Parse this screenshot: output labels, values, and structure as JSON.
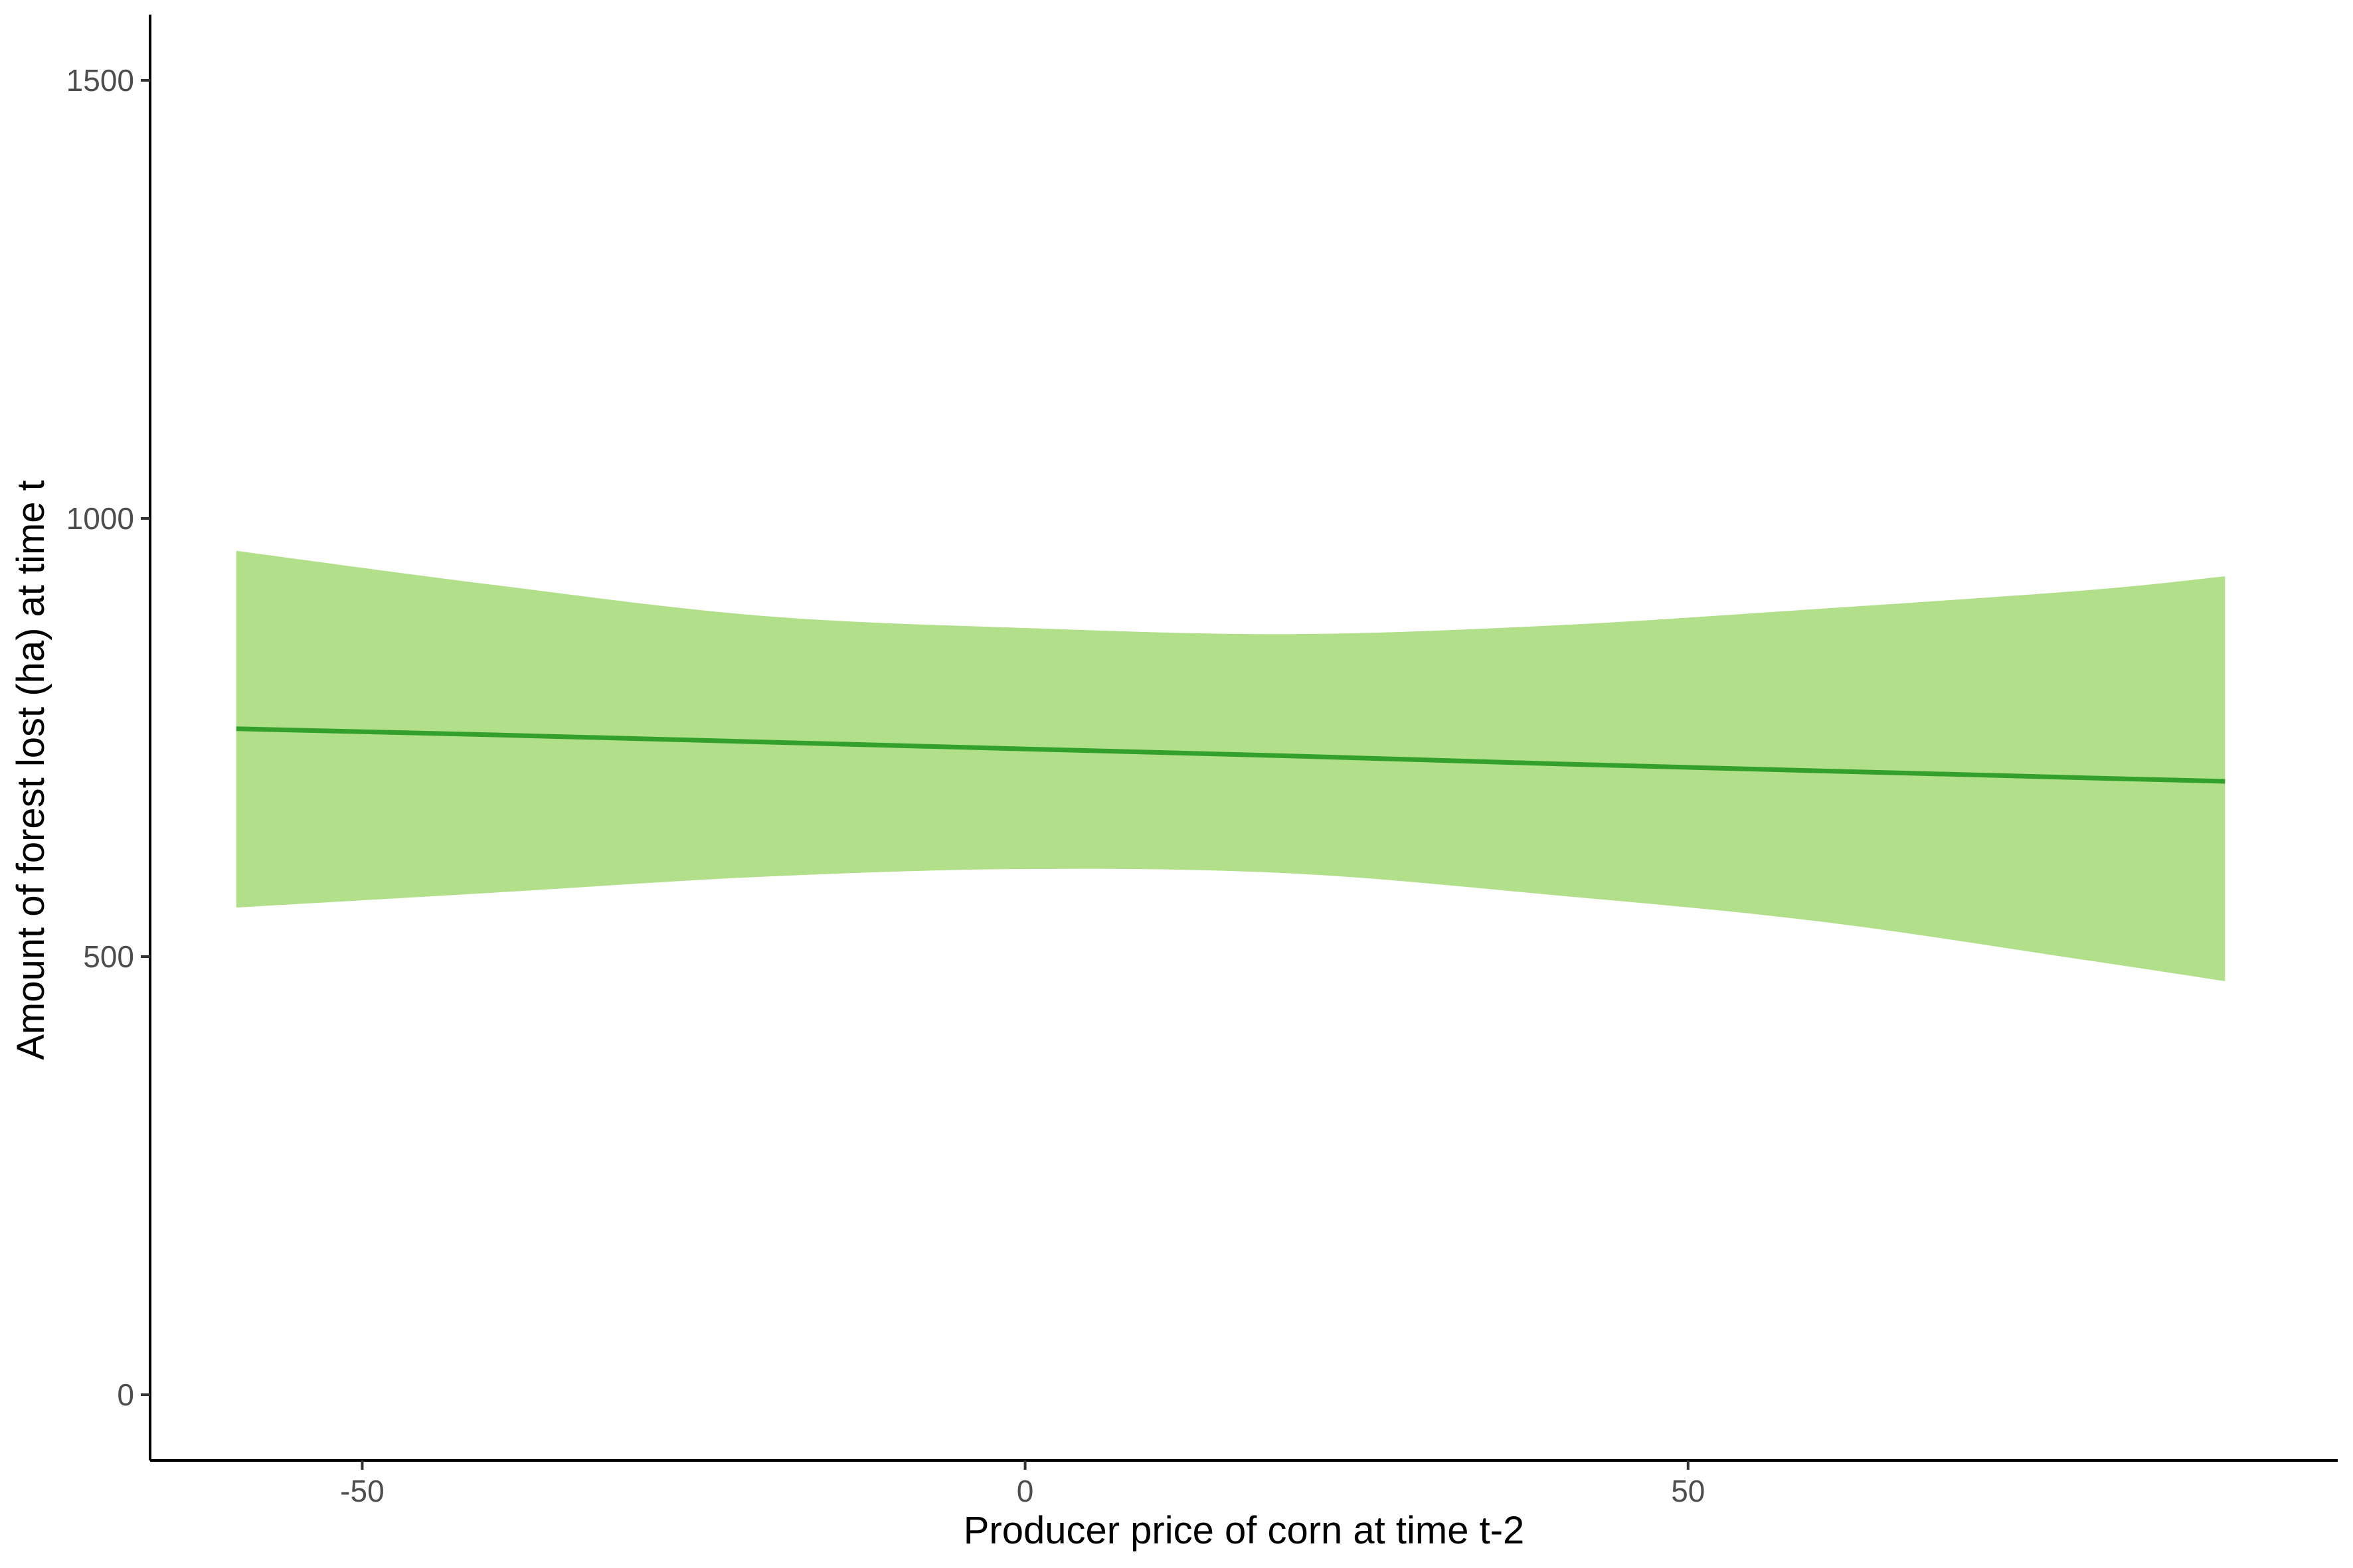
{
  "chart_data": {
    "type": "line",
    "title": "",
    "xlabel": "Producer price of corn at time t-2",
    "ylabel": "Amount of forest lost (ha) at time t",
    "xlim": [
      -66,
      99
    ],
    "ylim": [
      -75,
      1575
    ],
    "x_ticks": [
      {
        "value": -50,
        "label": "-50"
      },
      {
        "value": 0,
        "label": "0"
      },
      {
        "value": 50,
        "label": "50"
      }
    ],
    "y_ticks": [
      {
        "value": 0,
        "label": "0"
      },
      {
        "value": 500,
        "label": "500"
      },
      {
        "value": 1000,
        "label": "1000"
      },
      {
        "value": 1500,
        "label": "1500"
      }
    ],
    "grid": false,
    "legend": "none",
    "series": [
      {
        "x": [
          -59.5,
          -40,
          -20,
          0,
          20,
          40,
          60,
          80,
          90.5
        ],
        "y": [
          760,
          753,
          745,
          737,
          729,
          720,
          712,
          704,
          700
        ],
        "lower": [
          556,
          573,
          591,
          600,
          595,
          570,
          540,
          496,
          472
        ],
        "upper": [
          963,
          924,
          889,
          875,
          868,
          878,
          897,
          918,
          934
        ],
        "line_color": "#33a02c",
        "band_color": "#b2df8a"
      }
    ]
  }
}
